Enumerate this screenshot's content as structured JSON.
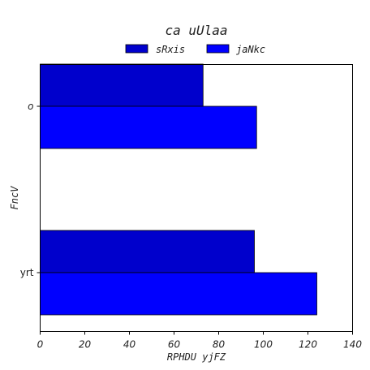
{
  "chart_data": {
    "type": "bar",
    "orientation": "horizontal",
    "title": "ca uUlaa",
    "xlabel": "RPHDU yjFZ",
    "ylabel": "FncV",
    "categories": [
      "o",
      "yrt"
    ],
    "series": [
      {
        "name": "sRxis",
        "values": [
          73,
          96
        ],
        "color": "#0000cc"
      },
      {
        "name": "jaNkc",
        "values": [
          97,
          124
        ],
        "color": "#0000ff"
      }
    ],
    "xlim": [
      0,
      140
    ],
    "xticks": [
      "0",
      "20",
      "40",
      "60",
      "80",
      "100",
      "120",
      "140"
    ],
    "grid": false,
    "legend_position": "top-center"
  }
}
